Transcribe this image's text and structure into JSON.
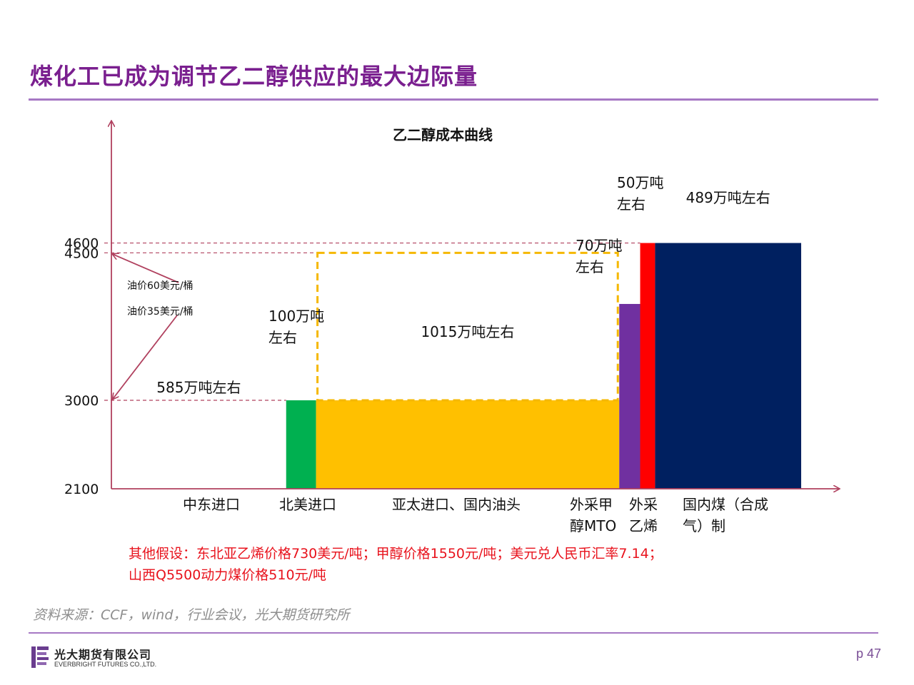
{
  "page": {
    "title": "煤化工已成为调节乙二醇供应的最大边际量",
    "source": "资料来源：CCF，wind，行业会议，光大期货研究所",
    "logo": {
      "name_cn": "光大期货有限公司",
      "name_en": "EVERBRIGHT FUTURES CO.,LTD."
    },
    "page_number": "p 47",
    "assumptions_line1": "其他假设：东北亚乙烯价格730美元/吨；甲醇价格1550元/吨；美元兑人民币汇率7.14；",
    "assumptions_line2": "山西Q5500动力煤价格510元/吨"
  },
  "chart_data": {
    "type": "bar",
    "title": "乙二醇成本曲线",
    "xlabel": "",
    "ylabel": "",
    "y_ticks": [
      4600,
      4500,
      3000,
      2100
    ],
    "ylim": [
      0,
      4800
    ],
    "bars": [
      {
        "category": "中东进口",
        "category_lines": [
          "中东进口"
        ],
        "capacity_wan_t": 585,
        "cost": 2100,
        "label_lines": [
          "585万吨左右"
        ],
        "color": "#0070c0"
      },
      {
        "category": "北美进口",
        "category_lines": [
          "北美进口"
        ],
        "capacity_wan_t": 100,
        "cost": 3000,
        "label_lines": [
          "100万吨",
          "左右"
        ],
        "color": "#00b050"
      },
      {
        "category": "亚太进口、国内油头",
        "category_lines": [
          "亚太进口、国内油头"
        ],
        "capacity_wan_t": 1015,
        "cost": 3000,
        "cost_high": 4500,
        "label_lines": [
          "1015万吨左右"
        ],
        "color": "#ffc000"
      },
      {
        "category": "外采甲醇MTO",
        "category_lines": [
          "外采甲",
          "醇MTO"
        ],
        "capacity_wan_t": 70,
        "cost": 3980,
        "label_lines": [
          "70万吨",
          "左右"
        ],
        "color": "#7030a0"
      },
      {
        "category": "外采乙烯",
        "category_lines": [
          "外采",
          "乙烯"
        ],
        "capacity_wan_t": 50,
        "cost": 4600,
        "label_lines": [
          "50万吨",
          "左右"
        ],
        "color": "#ff0000"
      },
      {
        "category": "国内煤（合成气）制",
        "category_lines": [
          "国内煤（合成",
          "气）制"
        ],
        "capacity_wan_t": 489,
        "cost": 4600,
        "label_lines": [
          "489万吨左右"
        ],
        "color": "#002060"
      }
    ],
    "annotations": [
      "油价60美元/桶",
      "油价35美元/桶"
    ],
    "grid": false,
    "legend": "none"
  }
}
